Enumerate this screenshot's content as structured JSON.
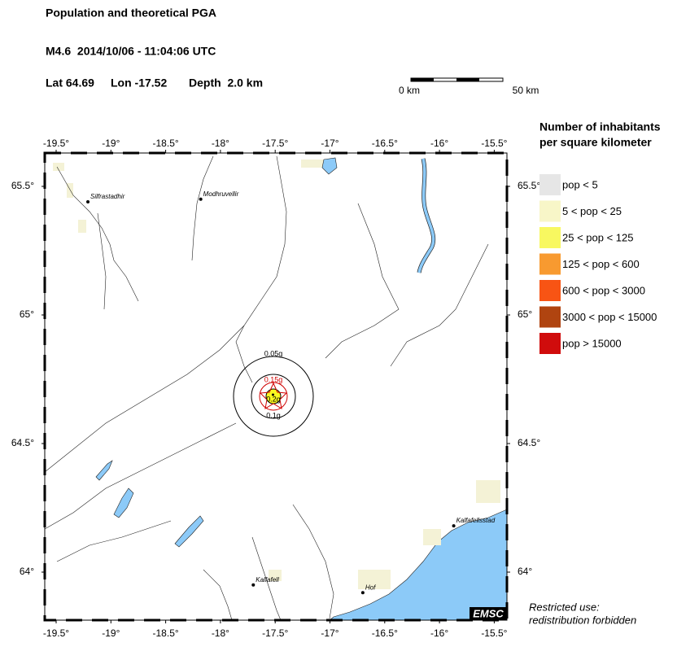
{
  "header": {
    "title": "Population and theoretical PGA",
    "event": "M4.6  2014/10/06 - 11:04:06 UTC",
    "lat": "Lat 64.69",
    "lon": "Lon -17.52",
    "depth": "Depth  2.0 km"
  },
  "scale_bar": {
    "start": "0 km",
    "end": "50 km"
  },
  "map": {
    "lon_ticks": [
      {
        "value": -19.5,
        "label": "-19.5°"
      },
      {
        "value": -19,
        "label": "-19°"
      },
      {
        "value": -18.5,
        "label": "-18.5°"
      },
      {
        "value": -18,
        "label": "-18°"
      },
      {
        "value": -17.5,
        "label": "-17.5°"
      },
      {
        "value": -17,
        "label": "-17°"
      },
      {
        "value": -16.5,
        "label": "-16.5°"
      },
      {
        "value": -16,
        "label": "-16°"
      },
      {
        "value": -15.5,
        "label": "-15.5°"
      }
    ],
    "lat_ticks": [
      {
        "value": 65.5,
        "label": "65.5°"
      },
      {
        "value": 65,
        "label": "65°"
      },
      {
        "value": 64.5,
        "label": "64.5°"
      },
      {
        "value": 64,
        "label": "64°"
      }
    ],
    "places": [
      {
        "name": "Silfrastadhir",
        "lon": -19.21,
        "lat": 65.44
      },
      {
        "name": "Modhruvellir",
        "lon": -18.18,
        "lat": 65.45
      },
      {
        "name": "Kalfafell",
        "lon": -17.7,
        "lat": 63.95
      },
      {
        "name": "Hof",
        "lon": -16.7,
        "lat": 63.92
      },
      {
        "name": "Kalfafellsstad",
        "lon": -15.87,
        "lat": 64.18
      }
    ],
    "epicenter": {
      "lon": -17.52,
      "lat": 64.69
    },
    "pga_labels": [
      "0.05g",
      "0.15g",
      "0.2g",
      "0.1g"
    ],
    "badge": "EMSC"
  },
  "legend": {
    "title": [
      "Number of inhabitants",
      "per square kilometer"
    ],
    "items": [
      {
        "label": "pop < 5",
        "color": "#e6e6e6"
      },
      {
        "label": "5 < pop < 25",
        "color": "#f8f6c8"
      },
      {
        "label": "25 < pop < 125",
        "color": "#f8f860"
      },
      {
        "label": "125 < pop < 600",
        "color": "#f89a30"
      },
      {
        "label": "600 < pop < 3000",
        "color": "#f85414"
      },
      {
        "label": "3000 < pop < 15000",
        "color": "#b04410"
      },
      {
        "label": "pop > 15000",
        "color": "#d00c0c"
      }
    ]
  },
  "notice": [
    "Restricted use:",
    "redistribution forbidden"
  ]
}
